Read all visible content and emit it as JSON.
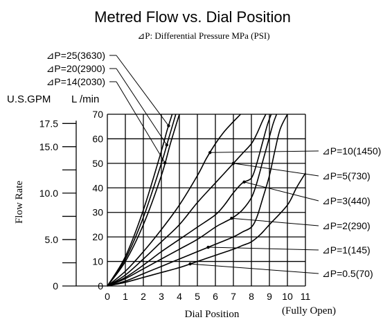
{
  "chart_data": {
    "type": "line",
    "title": "Metred Flow vs. Dial Position",
    "subtitle": "⊿P: Differential Pressure MPa (PSI)",
    "xlabel": "Dial Position",
    "x_note": "(Fully Open)",
    "ylabel": "Flow Rate",
    "y_units_left": "U.S.GPM",
    "y_units_right": "L /min",
    "xlim": [
      0,
      11
    ],
    "ylim": [
      0,
      70
    ],
    "x_ticks": [
      "0",
      "1",
      "2",
      "3",
      "4",
      "5",
      "6",
      "7",
      "8",
      "9",
      "10",
      "11"
    ],
    "y_ticks_lpm": [
      "0",
      "10",
      "20",
      "30",
      "40",
      "50",
      "60",
      "70"
    ],
    "y_ticks_gpm": [
      "0",
      "5.0",
      "10.0",
      "15.0",
      "17.5"
    ],
    "grid": true,
    "series": [
      {
        "name": "⊿P=0.5(70)",
        "x": [
          0,
          1,
          2,
          3,
          4,
          5,
          6,
          7,
          7.5,
          8,
          8.5,
          9,
          10,
          10.5,
          11
        ],
        "y": [
          0,
          1.5,
          3.5,
          5.5,
          7.5,
          10,
          12.5,
          15,
          16.5,
          18,
          21,
          25,
          33,
          40,
          46
        ]
      },
      {
        "name": "⊿P=1(145)",
        "x": [
          0,
          1,
          2,
          3,
          4,
          5,
          6,
          7,
          7.5,
          8,
          8.3,
          8.6,
          9,
          9.3,
          9.6,
          10
        ],
        "y": [
          0,
          2,
          5,
          8,
          11,
          14,
          17,
          20,
          22,
          24,
          28,
          35,
          45,
          55,
          64,
          70
        ]
      },
      {
        "name": "⊿P=2(290)",
        "x": [
          0,
          1,
          2,
          3,
          4,
          5,
          6,
          6.5,
          7,
          7.5,
          8,
          8.3,
          8.6,
          8.9,
          9.2,
          9.4
        ],
        "y": [
          0,
          3,
          7,
          11,
          15,
          19,
          24,
          26,
          28,
          31,
          36,
          42,
          50,
          58,
          66,
          70
        ]
      },
      {
        "name": "⊿P=3(440)",
        "x": [
          0,
          1,
          2,
          3,
          4,
          5,
          6,
          6.5,
          7,
          7.5,
          8,
          8.3,
          8.6,
          8.9,
          9.1
        ],
        "y": [
          0,
          3.5,
          8.5,
          14,
          19,
          24,
          29,
          33,
          38,
          42,
          44,
          50,
          58,
          66,
          70
        ]
      },
      {
        "name": "⊿P=5(730)",
        "x": [
          0,
          1,
          2,
          3,
          4,
          5,
          6,
          7,
          7.5,
          8,
          8.3,
          8.6,
          8.8
        ],
        "y": [
          0,
          4.5,
          11,
          18,
          25,
          34,
          42,
          50,
          54,
          58,
          62,
          67,
          70
        ]
      },
      {
        "name": "⊿P=10(1450)",
        "x": [
          0,
          1,
          2,
          3,
          4,
          5,
          5.5,
          6,
          6.5,
          7,
          7.4
        ],
        "y": [
          0,
          6,
          14,
          23,
          33,
          45,
          52,
          58,
          63,
          67,
          70
        ]
      },
      {
        "name": "⊿P=14(2030)",
        "x": [
          0,
          1,
          2,
          3,
          3.5,
          4
        ],
        "y": [
          0,
          10,
          25,
          45,
          58,
          70
        ]
      },
      {
        "name": "⊿P=20(2900)",
        "x": [
          0,
          1,
          2,
          3,
          3.4,
          3.8
        ],
        "y": [
          0,
          11,
          28,
          50,
          60,
          70
        ]
      },
      {
        "name": "⊿P=25(3630)",
        "x": [
          0,
          1,
          2,
          3,
          3.3,
          3.6
        ],
        "y": [
          0,
          12,
          31,
          55,
          63,
          70
        ]
      }
    ]
  }
}
